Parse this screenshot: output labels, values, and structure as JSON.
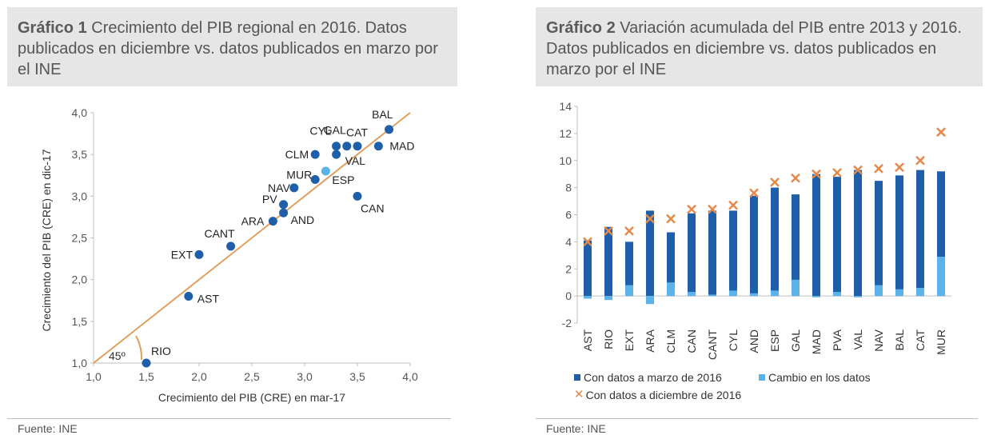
{
  "chart1": {
    "title_bold": "Gráfico 1",
    "title_rest": " Crecimiento del PIB regional en 2016. Datos publicados en diciembre vs. datos publicados en marzo por el INE",
    "source": "Fuente: INE",
    "colors": {
      "point": "#1f5ea8",
      "highlight": "#5bb3ea",
      "line": "#e0a060",
      "axis": "#bfbfbf"
    },
    "chart_data": {
      "type": "scatter",
      "xlabel": "Crecimiento del PIB (CRE) en mar-17",
      "ylabel": "Crecimiento del PIB (CRE) en dic-17",
      "xlim": [
        1.0,
        4.0
      ],
      "ylim": [
        1.0,
        4.0
      ],
      "xticks": [
        "1,0",
        "1,5",
        "2,0",
        "2,5",
        "3,0",
        "3,5",
        "4,0"
      ],
      "yticks": [
        "1,0",
        "1,5",
        "2,0",
        "2,5",
        "3,0",
        "3,5",
        "4,0"
      ],
      "reference_line": {
        "from": [
          1.0,
          1.0
        ],
        "to": [
          4.0,
          4.0
        ],
        "label": "45º"
      },
      "points": [
        {
          "label": "RIO",
          "x": 1.5,
          "y": 1.0
        },
        {
          "label": "AST",
          "x": 1.9,
          "y": 1.8
        },
        {
          "label": "EXT",
          "x": 2.0,
          "y": 2.3
        },
        {
          "label": "CANT",
          "x": 2.3,
          "y": 2.4
        },
        {
          "label": "ARA",
          "x": 2.7,
          "y": 2.7
        },
        {
          "label": "AND",
          "x": 2.8,
          "y": 2.8
        },
        {
          "label": "PV",
          "x": 2.8,
          "y": 2.9
        },
        {
          "label": "NAV",
          "x": 2.9,
          "y": 3.1
        },
        {
          "label": "MUR",
          "x": 3.1,
          "y": 3.2
        },
        {
          "label": "ESP",
          "x": 3.2,
          "y": 3.3,
          "highlight": true
        },
        {
          "label": "CLM",
          "x": 3.1,
          "y": 3.5
        },
        {
          "label": "CYL",
          "x": 3.3,
          "y": 3.6
        },
        {
          "label": "VAL",
          "x": 3.3,
          "y": 3.5
        },
        {
          "label": "GAL",
          "x": 3.4,
          "y": 3.6
        },
        {
          "label": "CAT",
          "x": 3.5,
          "y": 3.6
        },
        {
          "label": "MAD",
          "x": 3.7,
          "y": 3.6
        },
        {
          "label": "BAL",
          "x": 3.8,
          "y": 3.8
        },
        {
          "label": "CAN",
          "x": 3.5,
          "y": 3.0
        }
      ]
    }
  },
  "chart2": {
    "title_bold": "Gráfico 2",
    "title_rest": " Variación acumulada del PIB entre 2013 y 2016. Datos publicados en diciembre vs. datos publicados en marzo por el INE",
    "source": "Fuente: INE",
    "colors": {
      "march": "#1f5ea8",
      "change": "#5bb3ea",
      "december": "#e5894a",
      "axis": "#bfbfbf"
    },
    "legend": {
      "march": "Con datos a marzo de 2016",
      "change": "Cambio en los datos",
      "december": "Con datos a diciembre de 2016"
    },
    "chart_data": {
      "type": "bar",
      "ylim": [
        -2,
        14
      ],
      "yticks": [
        "-2",
        "0",
        "2",
        "4",
        "6",
        "8",
        "10",
        "12",
        "14"
      ],
      "categories": [
        "AST",
        "RIO",
        "EXT",
        "ARA",
        "CLM",
        "CAN",
        "CANT",
        "CYL",
        "AND",
        "ESP",
        "GAL",
        "MAD",
        "PVA",
        "VAL",
        "NAV",
        "BAL",
        "CAT",
        "MUR"
      ],
      "series": [
        {
          "name": "Con datos a marzo de 2016",
          "values": [
            4.1,
            5.1,
            4.0,
            6.3,
            4.7,
            6.1,
            6.3,
            6.3,
            7.4,
            8.0,
            7.5,
            9.0,
            8.8,
            9.3,
            8.5,
            8.9,
            9.3,
            9.2
          ]
        },
        {
          "name": "Cambio en los datos",
          "values": [
            -0.2,
            -0.3,
            0.8,
            -0.6,
            1.0,
            0.3,
            0.1,
            0.4,
            0.2,
            0.4,
            1.2,
            -0.1,
            0.3,
            -0.1,
            0.8,
            0.5,
            0.6,
            2.9
          ]
        },
        {
          "name": "Con datos a diciembre de 2016",
          "values": [
            4.0,
            4.8,
            4.8,
            5.7,
            5.7,
            6.4,
            6.4,
            6.7,
            7.6,
            8.4,
            8.7,
            9.0,
            9.1,
            9.3,
            9.4,
            9.5,
            10.0,
            12.1
          ]
        }
      ]
    }
  }
}
